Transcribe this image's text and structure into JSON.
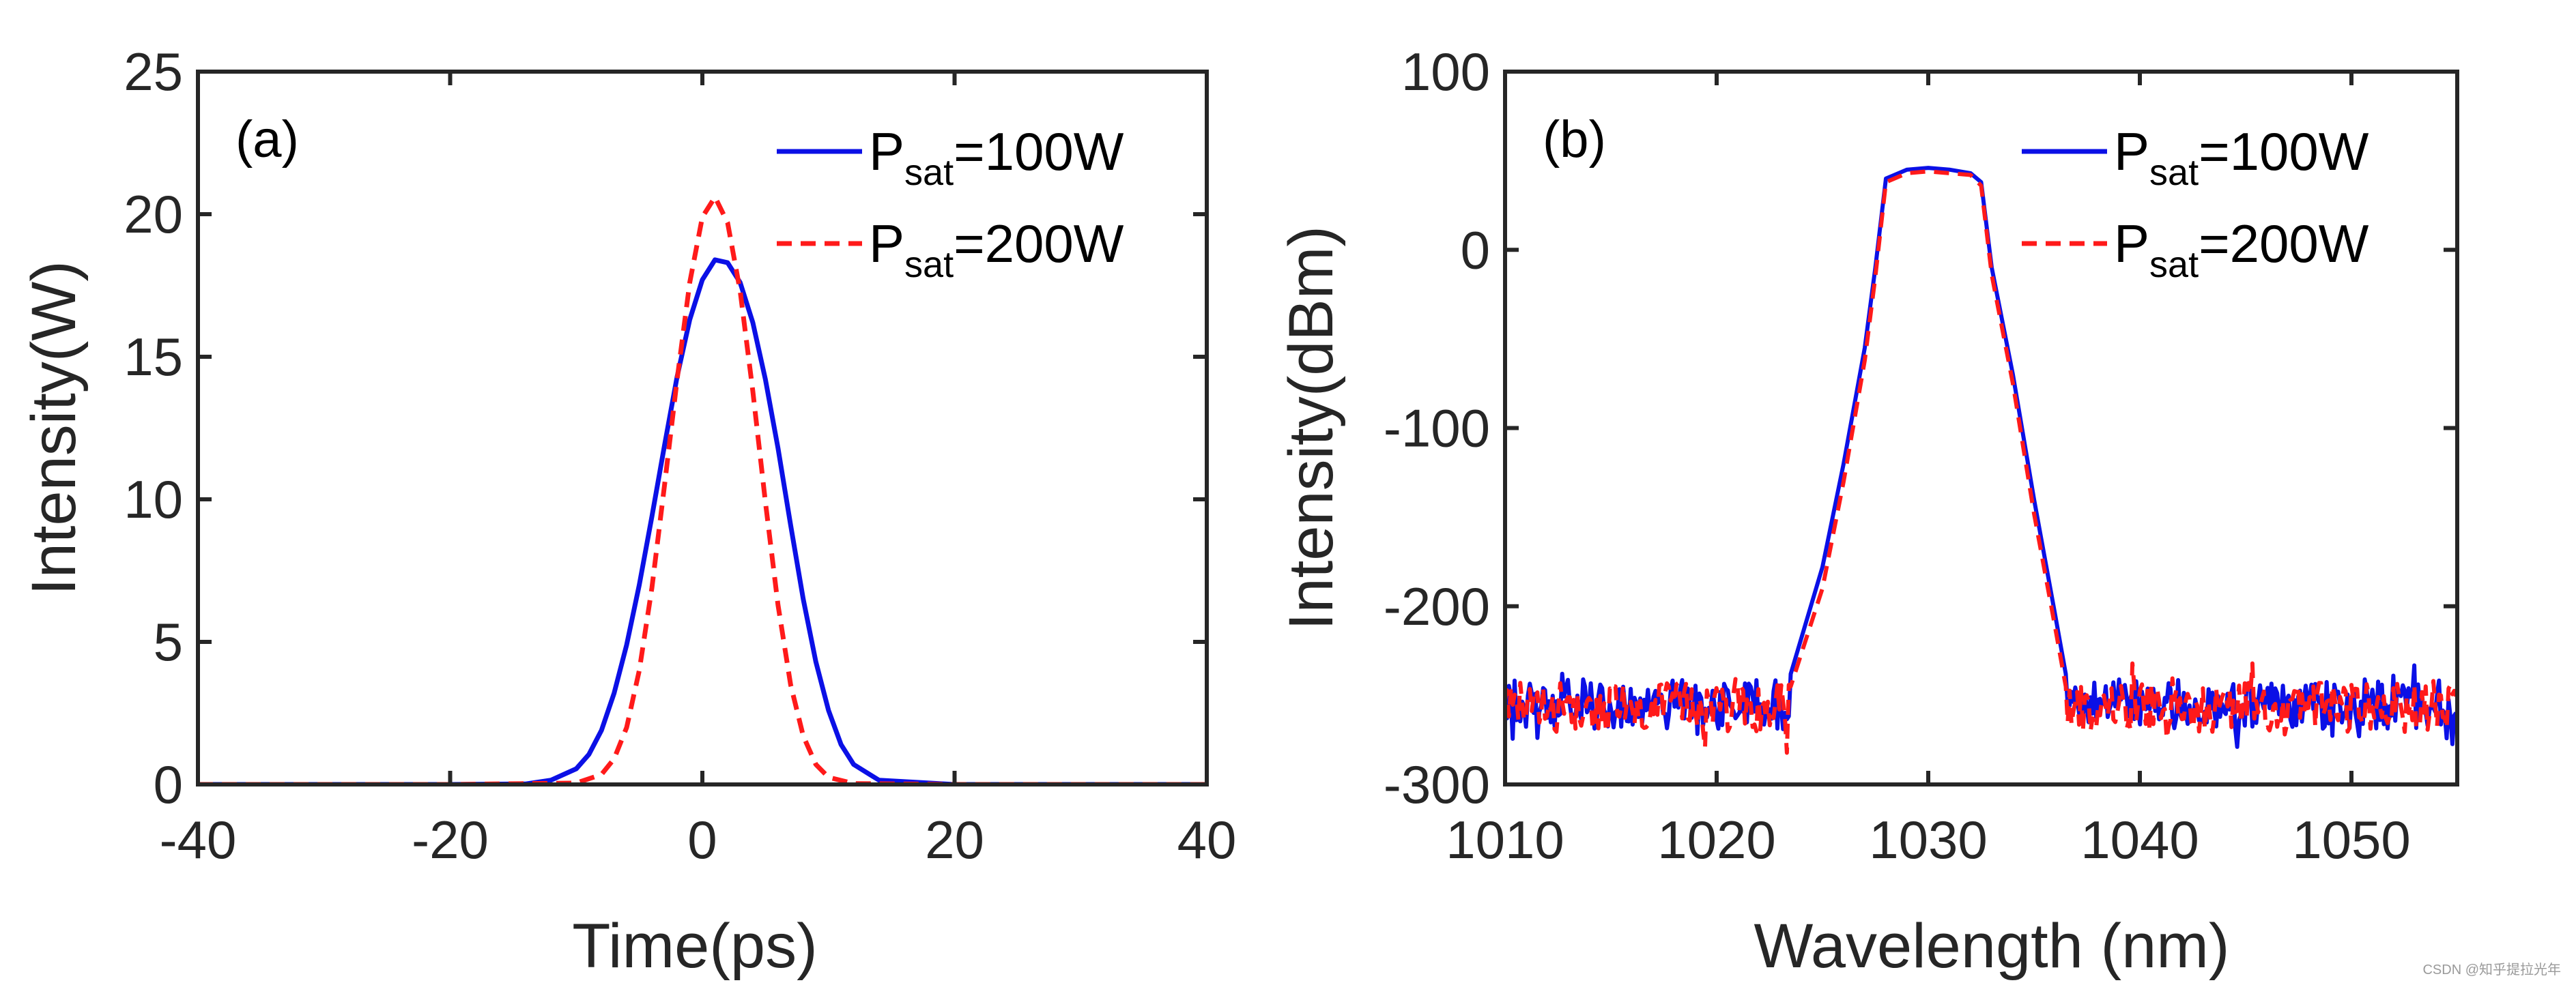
{
  "colors": {
    "series1": "#0b10e6",
    "series2": "#ff1a1a",
    "axis": "#262626"
  },
  "legend_base": "P",
  "legend_equals": "=",
  "watermark": "CSDN @知乎提拉光年",
  "chart_data": [
    {
      "type": "line",
      "panel_label": "(a)",
      "title": "",
      "xlabel": "Time(ps)",
      "ylabel": "Intensity(W)",
      "xlim": [
        -40,
        40
      ],
      "ylim": [
        0,
        25
      ],
      "xticks": [
        -40,
        -20,
        0,
        20,
        40
      ],
      "yticks": [
        0,
        5,
        10,
        15,
        20,
        25
      ],
      "xtick_labels": [
        "-40",
        "-20",
        "0",
        "20",
        "40"
      ],
      "ytick_labels": [
        "0",
        "5",
        "10",
        "15",
        "20",
        "25"
      ],
      "legend_position": "top-right",
      "series": [
        {
          "name": "Psat=100W",
          "legend_sub": "sat",
          "legend_value": "100W",
          "style": "solid",
          "color": "#0b10e6",
          "x": [
            -40,
            -20,
            -14,
            -12,
            -10,
            -9,
            -8,
            -7,
            -6,
            -5,
            -4,
            -3,
            -2,
            -1,
            0,
            1,
            2,
            3,
            4,
            5,
            6,
            7,
            8,
            9,
            10,
            11,
            12,
            14,
            20,
            40
          ],
          "y": [
            0,
            0,
            0.02,
            0.15,
            0.55,
            1.05,
            1.9,
            3.2,
            4.9,
            7.0,
            9.4,
            11.9,
            14.3,
            16.3,
            17.7,
            18.4,
            18.3,
            17.6,
            16.2,
            14.2,
            11.8,
            9.1,
            6.5,
            4.3,
            2.6,
            1.4,
            0.7,
            0.15,
            0,
            0
          ]
        },
        {
          "name": "Psat=200W",
          "legend_sub": "sat",
          "legend_value": "200W",
          "style": "dashed",
          "color": "#ff1a1a",
          "x": [
            -40,
            -20,
            -10,
            -8,
            -7,
            -6,
            -5,
            -4,
            -3,
            -2,
            -1,
            0,
            1,
            2,
            3,
            4,
            5,
            6,
            7,
            8,
            9,
            10,
            12,
            20,
            40
          ],
          "y": [
            0,
            0,
            0.05,
            0.35,
            0.9,
            2.0,
            4.0,
            6.9,
            10.5,
            14.2,
            17.6,
            19.9,
            20.6,
            19.7,
            17.3,
            13.8,
            9.9,
            6.3,
            3.5,
            1.7,
            0.7,
            0.25,
            0.03,
            0,
            0
          ]
        }
      ]
    },
    {
      "type": "line",
      "panel_label": "(b)",
      "title": "",
      "xlabel": "Wavelength (nm)",
      "ylabel": "Intensity(dBm)",
      "xlim": [
        1010,
        1055
      ],
      "ylim": [
        -300,
        100
      ],
      "xticks": [
        1010,
        1020,
        1030,
        1040,
        1050
      ],
      "yticks": [
        -300,
        -200,
        -100,
        0,
        100
      ],
      "xtick_labels": [
        "1010",
        "1020",
        "1030",
        "1040",
        "1050"
      ],
      "ytick_labels": [
        "-300",
        "-200",
        "-100",
        "0",
        "100"
      ],
      "legend_position": "top-right",
      "series": [
        {
          "name": "Psat=100W",
          "legend_sub": "sat",
          "legend_value": "100W",
          "style": "solid",
          "color": "#0b10e6",
          "x": [
            1010,
            1023.5,
            1025,
            1026,
            1027,
            1027.5,
            1028,
            1029,
            1030,
            1031,
            1032,
            1032.5,
            1033,
            1034,
            1035,
            1036,
            1036.5,
            1055
          ],
          "y": [
            -255,
            -238,
            -178,
            -120,
            -55,
            -10,
            40,
            45,
            46,
            45,
            43,
            38,
            -10,
            -70,
            -140,
            -205,
            -238,
            -255
          ]
        },
        {
          "name": "Psat=200W",
          "legend_sub": "sat",
          "legend_value": "200W",
          "style": "dashed",
          "color": "#ff1a1a",
          "x": [
            1010,
            1023.5,
            1025,
            1026,
            1027,
            1027.5,
            1028,
            1029,
            1030,
            1031,
            1032,
            1032.5,
            1033,
            1034,
            1035,
            1036,
            1036.5,
            1055
          ],
          "y": [
            -257,
            -245,
            -190,
            -130,
            -62,
            -15,
            38,
            43,
            44,
            43,
            42,
            36,
            -14,
            -75,
            -148,
            -212,
            -245,
            -257
          ]
        }
      ]
    }
  ]
}
